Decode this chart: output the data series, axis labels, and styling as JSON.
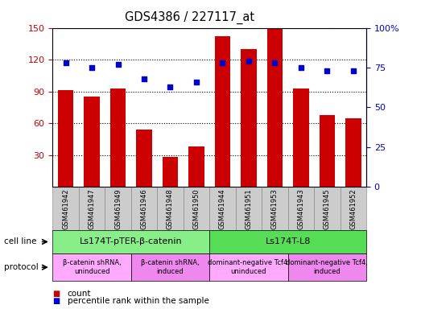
{
  "title": "GDS4386 / 227117_at",
  "categories": [
    "GSM461942",
    "GSM461947",
    "GSM461949",
    "GSM461946",
    "GSM461948",
    "GSM461950",
    "GSM461944",
    "GSM461951",
    "GSM461953",
    "GSM461943",
    "GSM461945",
    "GSM461952"
  ],
  "bar_values": [
    91,
    85,
    93,
    54,
    28,
    38,
    142,
    130,
    150,
    93,
    68,
    65
  ],
  "dot_values": [
    78,
    75,
    77,
    68,
    63,
    66,
    78,
    79,
    78,
    75,
    73,
    73
  ],
  "bar_color": "#cc0000",
  "dot_color": "#0000cc",
  "ylim_left": [
    0,
    150
  ],
  "ylim_right": [
    0,
    100
  ],
  "yticks_left": [
    30,
    60,
    90,
    120,
    150
  ],
  "yticks_right": [
    0,
    25,
    50,
    75,
    100
  ],
  "cell_line_groups": [
    {
      "label": "Ls174T-pTER-β-catenin",
      "start": 0,
      "end": 6,
      "color": "#88ee88"
    },
    {
      "label": "Ls174T-L8",
      "start": 6,
      "end": 12,
      "color": "#55dd55"
    }
  ],
  "protocol_groups": [
    {
      "label": "β-catenin shRNA,\nuninduced",
      "start": 0,
      "end": 3,
      "color": "#ffaaff"
    },
    {
      "label": "β-catenin shRNA,\ninduced",
      "start": 3,
      "end": 6,
      "color": "#ee88ee"
    },
    {
      "label": "dominant-negative Tcf4,\nuninduced",
      "start": 6,
      "end": 9,
      "color": "#ffaaff"
    },
    {
      "label": "dominant-negative Tcf4,\ninduced",
      "start": 9,
      "end": 12,
      "color": "#ee88ee"
    }
  ],
  "tick_bg_color": "#cccccc",
  "legend_count_color": "#cc0000",
  "legend_dot_color": "#0000cc",
  "bg_color": "#ffffff",
  "tick_label_color_left": "#cc0000",
  "tick_label_color_right": "#0000cc"
}
